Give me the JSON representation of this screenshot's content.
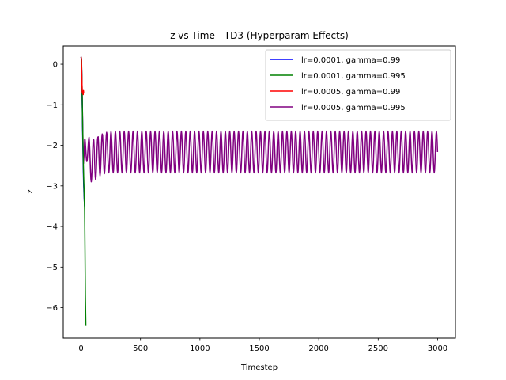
{
  "chart_data": {
    "type": "line",
    "title": "z vs Time - TD3 (Hyperparam Effects)",
    "xlabel": "Timestep",
    "ylabel": "z",
    "xlim": [
      -150,
      3150
    ],
    "ylim": [
      -6.75,
      0.45
    ],
    "xticks": [
      0,
      500,
      1000,
      1500,
      2000,
      2500,
      3000
    ],
    "yticks": [
      0,
      -1,
      -2,
      -3,
      -4,
      -5,
      -6
    ],
    "grid": false,
    "legend_position": "top-right",
    "series": [
      {
        "name": "lr=0.0001, gamma=0.99",
        "color": "#0000ff",
        "x": [
          0,
          3,
          6,
          10,
          14,
          18,
          22,
          26,
          30
        ],
        "y": [
          0.18,
          0.1,
          -0.3,
          -1.0,
          -1.8,
          -2.5,
          -3.0,
          -3.3,
          -3.5
        ]
      },
      {
        "name": "lr=0.0001, gamma=0.995",
        "color": "#008000",
        "x": [
          0,
          4,
          8,
          12,
          16,
          20,
          25,
          30,
          33,
          36,
          40
        ],
        "y": [
          0.18,
          0.1,
          -0.5,
          -1.3,
          -2.0,
          -2.6,
          -3.1,
          -3.6,
          -4.6,
          -5.7,
          -6.45
        ]
      },
      {
        "name": "lr=0.0005, gamma=0.99",
        "color": "#ff0000",
        "x": [
          0,
          3,
          6,
          10,
          13,
          16,
          18,
          20,
          22
        ],
        "y": [
          0.18,
          0.1,
          -0.3,
          -0.7,
          -0.72,
          -0.68,
          -0.75,
          -0.65,
          -0.7
        ]
      },
      {
        "name": "lr=0.0005, gamma=0.995",
        "color": "#800080",
        "x0": 0,
        "x_end": 3000,
        "start_y": 0.18,
        "initial_dip": -2.45,
        "settle": {
          "period": 37,
          "start_x": 30,
          "min_values": [
            -2.4,
            -2.9,
            -2.85,
            -2.75,
            -2.7,
            -2.68
          ],
          "max_values": [
            -1.8,
            -1.85,
            -1.8,
            -1.72,
            -1.68,
            -1.66
          ]
        },
        "steady": {
          "min": -2.68,
          "max": -1.65,
          "period": 37
        }
      }
    ]
  }
}
